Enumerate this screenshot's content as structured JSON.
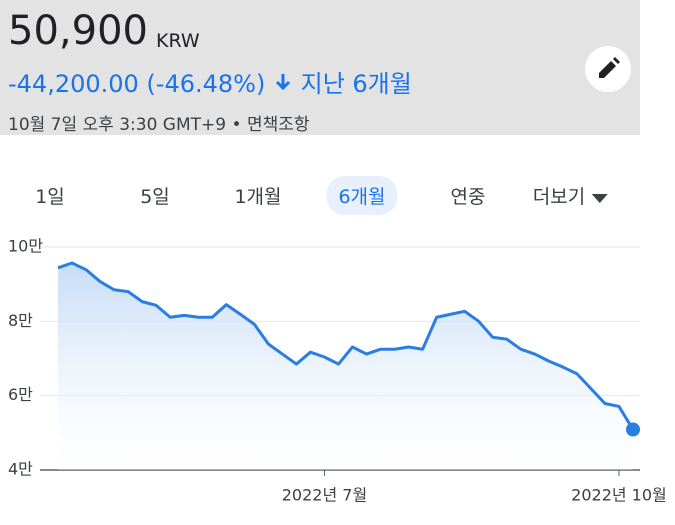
{
  "header": {
    "price": "50,900",
    "currency": "KRW",
    "change": "-44,200.00 (-46.48%)",
    "period": "지난 6개월",
    "timestamp": "10월 7일 오후 3:30 GMT+9",
    "separator": "•",
    "disclaimer": "면책조항"
  },
  "tabs": {
    "labels": [
      "1일",
      "5일",
      "1개월",
      "6개월",
      "연중",
      "더보기"
    ],
    "active": 3
  },
  "chart_data": {
    "type": "line",
    "categories": [
      null,
      null,
      null,
      null,
      null,
      null,
      null,
      null,
      null,
      null,
      null,
      null,
      null,
      null,
      null,
      null,
      null,
      null,
      null,
      "2022년 7월",
      null,
      null,
      null,
      null,
      null,
      null,
      null,
      null,
      null,
      null,
      null,
      null,
      null,
      null,
      null,
      null,
      null,
      null,
      null,
      null,
      "2022년 10월",
      null
    ],
    "series": [
      {
        "name": "50,900",
        "color": "#2a7de1",
        "values": [
          94400,
          95700,
          93900,
          90700,
          88500,
          88000,
          85300,
          84300,
          81100,
          81600,
          81100,
          81100,
          84500,
          81900,
          79200,
          73900,
          71200,
          68500,
          71700,
          70400,
          68500,
          73100,
          71200,
          72500,
          72500,
          73100,
          72500,
          81100,
          81900,
          82700,
          80000,
          75700,
          75200,
          72500,
          71200,
          69300,
          67700,
          65900,
          61900,
          57900,
          57100,
          50900
        ]
      }
    ],
    "ylim": [
      40000,
      100000
    ],
    "yticks": [
      {
        "value": 40000,
        "label": "4만"
      },
      {
        "value": 60000,
        "label": "6만"
      },
      {
        "value": 80000,
        "label": "8만"
      },
      {
        "value": 100000,
        "label": "10만"
      }
    ],
    "grid": true
  }
}
